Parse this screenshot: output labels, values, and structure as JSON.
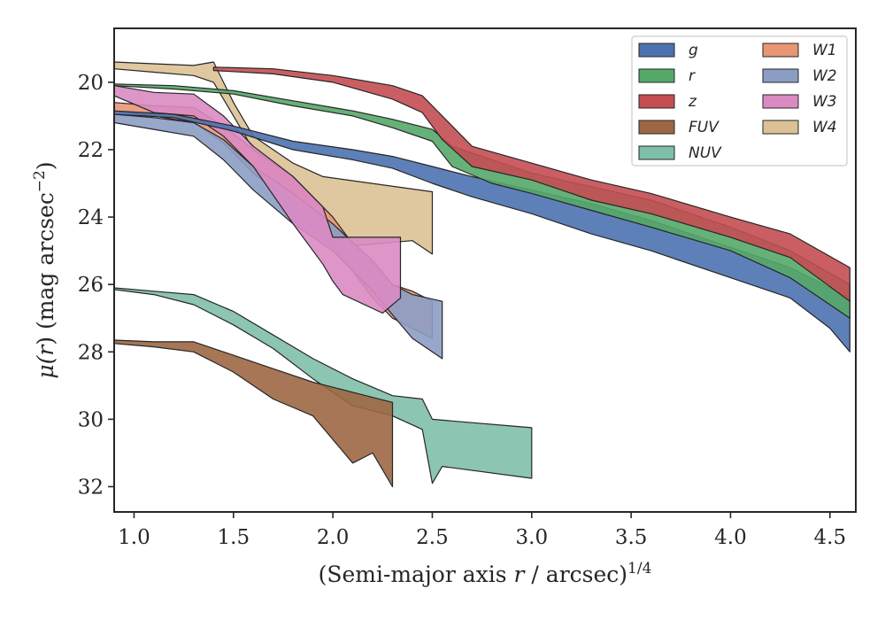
{
  "chart_data": {
    "type": "area",
    "xlabel_main": "(Semi-major axis ",
    "xlabel_var": "r",
    "xlabel_tail": " / arcsec)",
    "xlabel_sup": "1/4",
    "ylabel_main": "μ(",
    "ylabel_var": "r",
    "ylabel_tail": ") (mag arcsec",
    "ylabel_sup": "−2",
    "ylabel_close": ")",
    "xlim": [
      0.9,
      4.63
    ],
    "ylim": [
      32.75,
      18.4
    ],
    "xticks": [
      1.0,
      1.5,
      2.0,
      2.5,
      3.0,
      3.5,
      4.0,
      4.5
    ],
    "xtick_labels": [
      "1.0",
      "1.5",
      "2.0",
      "2.5",
      "3.0",
      "3.5",
      "4.0",
      "4.5"
    ],
    "yticks": [
      20,
      22,
      24,
      26,
      28,
      30,
      32
    ],
    "ytick_labels": [
      "20",
      "22",
      "24",
      "26",
      "28",
      "30",
      "32"
    ],
    "legend_position": "top-right",
    "legend_columns": 2,
    "series": [
      {
        "name": "g",
        "color": "#4c72b0",
        "upper": [
          [
            0.9,
            20.85
          ],
          [
            1.2,
            20.95
          ],
          [
            1.5,
            21.3
          ],
          [
            1.8,
            21.75
          ],
          [
            2.1,
            22.0
          ],
          [
            2.3,
            22.2
          ],
          [
            2.5,
            22.5
          ],
          [
            2.7,
            22.8
          ],
          [
            3.0,
            23.2
          ],
          [
            3.3,
            23.6
          ],
          [
            3.6,
            24.1
          ],
          [
            4.0,
            24.9
          ],
          [
            4.3,
            25.5
          ],
          [
            4.6,
            26.4
          ]
        ],
        "lower": [
          [
            0.9,
            20.95
          ],
          [
            1.2,
            21.05
          ],
          [
            1.5,
            21.45
          ],
          [
            1.8,
            22.0
          ],
          [
            2.1,
            22.3
          ],
          [
            2.3,
            22.55
          ],
          [
            2.5,
            23.0
          ],
          [
            2.7,
            23.4
          ],
          [
            3.0,
            23.9
          ],
          [
            3.3,
            24.5
          ],
          [
            3.6,
            25.0
          ],
          [
            4.0,
            25.8
          ],
          [
            4.3,
            26.4
          ],
          [
            4.5,
            27.3
          ],
          [
            4.6,
            28.0
          ]
        ]
      },
      {
        "name": "r",
        "color": "#55a868",
        "upper": [
          [
            0.9,
            20.05
          ],
          [
            1.2,
            20.1
          ],
          [
            1.5,
            20.25
          ],
          [
            1.8,
            20.55
          ],
          [
            2.1,
            20.85
          ],
          [
            2.3,
            21.1
          ],
          [
            2.5,
            21.4
          ],
          [
            2.6,
            21.9
          ],
          [
            2.8,
            22.3
          ],
          [
            3.0,
            22.7
          ],
          [
            3.3,
            23.1
          ],
          [
            3.6,
            23.5
          ],
          [
            4.0,
            24.3
          ],
          [
            4.3,
            25.0
          ],
          [
            4.6,
            26.0
          ]
        ],
        "lower": [
          [
            0.9,
            20.1
          ],
          [
            1.2,
            20.2
          ],
          [
            1.5,
            20.35
          ],
          [
            1.8,
            20.7
          ],
          [
            2.1,
            21.0
          ],
          [
            2.3,
            21.35
          ],
          [
            2.5,
            21.75
          ],
          [
            2.6,
            22.5
          ],
          [
            2.8,
            23.0
          ],
          [
            3.0,
            23.3
          ],
          [
            3.3,
            23.8
          ],
          [
            3.6,
            24.3
          ],
          [
            4.0,
            25.0
          ],
          [
            4.3,
            25.8
          ],
          [
            4.6,
            27.0
          ]
        ]
      },
      {
        "name": "z",
        "color": "#c44e52",
        "upper": [
          [
            1.4,
            19.55
          ],
          [
            1.7,
            19.6
          ],
          [
            2.0,
            19.8
          ],
          [
            2.3,
            20.1
          ],
          [
            2.45,
            20.4
          ],
          [
            2.55,
            21.0
          ],
          [
            2.7,
            21.9
          ],
          [
            3.0,
            22.4
          ],
          [
            3.3,
            22.9
          ],
          [
            3.6,
            23.3
          ],
          [
            4.0,
            24.0
          ],
          [
            4.3,
            24.5
          ],
          [
            4.6,
            25.5
          ]
        ],
        "lower": [
          [
            1.4,
            19.65
          ],
          [
            1.7,
            19.75
          ],
          [
            2.0,
            20.0
          ],
          [
            2.3,
            20.5
          ],
          [
            2.45,
            20.9
          ],
          [
            2.55,
            21.7
          ],
          [
            2.7,
            22.5
          ],
          [
            3.0,
            22.9
          ],
          [
            3.3,
            23.5
          ],
          [
            3.6,
            23.9
          ],
          [
            4.0,
            24.6
          ],
          [
            4.3,
            25.2
          ],
          [
            4.6,
            26.5
          ]
        ]
      },
      {
        "name": "W1",
        "color": "#e99675",
        "upper": [
          [
            0.9,
            20.6
          ],
          [
            1.1,
            20.7
          ],
          [
            1.3,
            20.75
          ],
          [
            1.45,
            21.3
          ],
          [
            1.6,
            22.0
          ],
          [
            1.8,
            22.8
          ],
          [
            2.0,
            24.0
          ],
          [
            2.1,
            24.8
          ],
          [
            2.2,
            25.4
          ],
          [
            2.3,
            26.0
          ],
          [
            2.4,
            26.2
          ],
          [
            2.5,
            26.5
          ]
        ],
        "lower": [
          [
            0.9,
            20.85
          ],
          [
            1.1,
            21.0
          ],
          [
            1.3,
            21.2
          ],
          [
            1.45,
            21.8
          ],
          [
            1.6,
            22.7
          ],
          [
            1.8,
            23.6
          ],
          [
            2.0,
            24.8
          ],
          [
            2.1,
            25.6
          ],
          [
            2.2,
            26.4
          ],
          [
            2.3,
            27.0
          ],
          [
            2.4,
            27.3
          ],
          [
            2.5,
            27.6
          ]
        ]
      },
      {
        "name": "W2",
        "color": "#8c9dc4",
        "upper": [
          [
            0.9,
            20.95
          ],
          [
            1.1,
            21.05
          ],
          [
            1.3,
            21.2
          ],
          [
            1.45,
            21.7
          ],
          [
            1.6,
            22.5
          ],
          [
            1.8,
            23.3
          ],
          [
            2.0,
            24.2
          ],
          [
            2.2,
            25.3
          ],
          [
            2.3,
            26.0
          ],
          [
            2.4,
            26.3
          ],
          [
            2.55,
            26.5
          ]
        ],
        "lower": [
          [
            0.9,
            21.2
          ],
          [
            1.1,
            21.4
          ],
          [
            1.3,
            21.6
          ],
          [
            1.45,
            22.3
          ],
          [
            1.6,
            23.2
          ],
          [
            1.8,
            24.2
          ],
          [
            2.0,
            25.0
          ],
          [
            2.2,
            26.2
          ],
          [
            2.3,
            26.9
          ],
          [
            2.4,
            27.6
          ],
          [
            2.55,
            28.2
          ]
        ]
      },
      {
        "name": "W3",
        "color": "#da8bc3",
        "upper": [
          [
            0.9,
            20.1
          ],
          [
            1.1,
            20.3
          ],
          [
            1.3,
            20.35
          ],
          [
            1.45,
            21.0
          ],
          [
            1.6,
            21.9
          ],
          [
            1.8,
            22.8
          ],
          [
            1.95,
            23.7
          ],
          [
            2.0,
            24.6
          ],
          [
            2.34,
            24.6
          ]
        ],
        "lower": [
          [
            0.9,
            20.4
          ],
          [
            1.1,
            20.9
          ],
          [
            1.3,
            21.0
          ],
          [
            1.45,
            21.6
          ],
          [
            1.6,
            22.5
          ],
          [
            1.8,
            24.2
          ],
          [
            1.95,
            25.4
          ],
          [
            2.0,
            25.9
          ],
          [
            2.05,
            26.3
          ],
          [
            2.25,
            26.85
          ],
          [
            2.34,
            26.4
          ]
        ]
      },
      {
        "name": "W4",
        "color": "#dcc196",
        "upper": [
          [
            0.9,
            19.4
          ],
          [
            1.1,
            19.45
          ],
          [
            1.3,
            19.5
          ],
          [
            1.4,
            19.4
          ],
          [
            1.5,
            20.6
          ],
          [
            1.6,
            21.6
          ],
          [
            1.8,
            22.4
          ],
          [
            1.95,
            22.8
          ],
          [
            2.5,
            23.25
          ]
        ],
        "lower": [
          [
            0.9,
            19.6
          ],
          [
            1.1,
            19.7
          ],
          [
            1.3,
            19.8
          ],
          [
            1.4,
            20.0
          ],
          [
            1.5,
            21.0
          ],
          [
            1.6,
            22.0
          ],
          [
            1.8,
            23.5
          ],
          [
            2.0,
            24.9
          ],
          [
            2.4,
            24.7
          ],
          [
            2.5,
            25.1
          ]
        ]
      },
      {
        "name": "FUV",
        "color": "#9c6744",
        "upper": [
          [
            0.9,
            27.65
          ],
          [
            1.1,
            27.7
          ],
          [
            1.3,
            27.7
          ],
          [
            1.5,
            28.1
          ],
          [
            1.7,
            28.5
          ],
          [
            1.9,
            28.9
          ],
          [
            2.1,
            29.2
          ],
          [
            2.3,
            29.5
          ]
        ],
        "lower": [
          [
            0.9,
            27.75
          ],
          [
            1.1,
            27.85
          ],
          [
            1.3,
            28.0
          ],
          [
            1.5,
            28.6
          ],
          [
            1.7,
            29.4
          ],
          [
            1.9,
            29.9
          ],
          [
            2.0,
            30.6
          ],
          [
            2.1,
            31.3
          ],
          [
            2.2,
            31.0
          ],
          [
            2.3,
            32.0
          ]
        ]
      },
      {
        "name": "NUV",
        "color": "#7fbfa8",
        "upper": [
          [
            0.9,
            26.1
          ],
          [
            1.1,
            26.2
          ],
          [
            1.3,
            26.3
          ],
          [
            1.5,
            26.8
          ],
          [
            1.7,
            27.5
          ],
          [
            1.9,
            28.2
          ],
          [
            2.1,
            28.8
          ],
          [
            2.3,
            29.3
          ],
          [
            2.45,
            29.4
          ],
          [
            2.5,
            30.0
          ],
          [
            3.0,
            30.25
          ]
        ],
        "lower": [
          [
            0.9,
            26.15
          ],
          [
            1.1,
            26.3
          ],
          [
            1.3,
            26.6
          ],
          [
            1.5,
            27.2
          ],
          [
            1.7,
            27.9
          ],
          [
            1.9,
            28.8
          ],
          [
            2.1,
            29.6
          ],
          [
            2.3,
            29.9
          ],
          [
            2.45,
            30.3
          ],
          [
            2.5,
            31.9
          ],
          [
            2.55,
            31.4
          ],
          [
            3.0,
            31.75
          ]
        ]
      }
    ],
    "legend_order": [
      "g",
      "W1",
      "r",
      "W2",
      "z",
      "W3",
      "FUV",
      "W4",
      "NUV"
    ]
  }
}
